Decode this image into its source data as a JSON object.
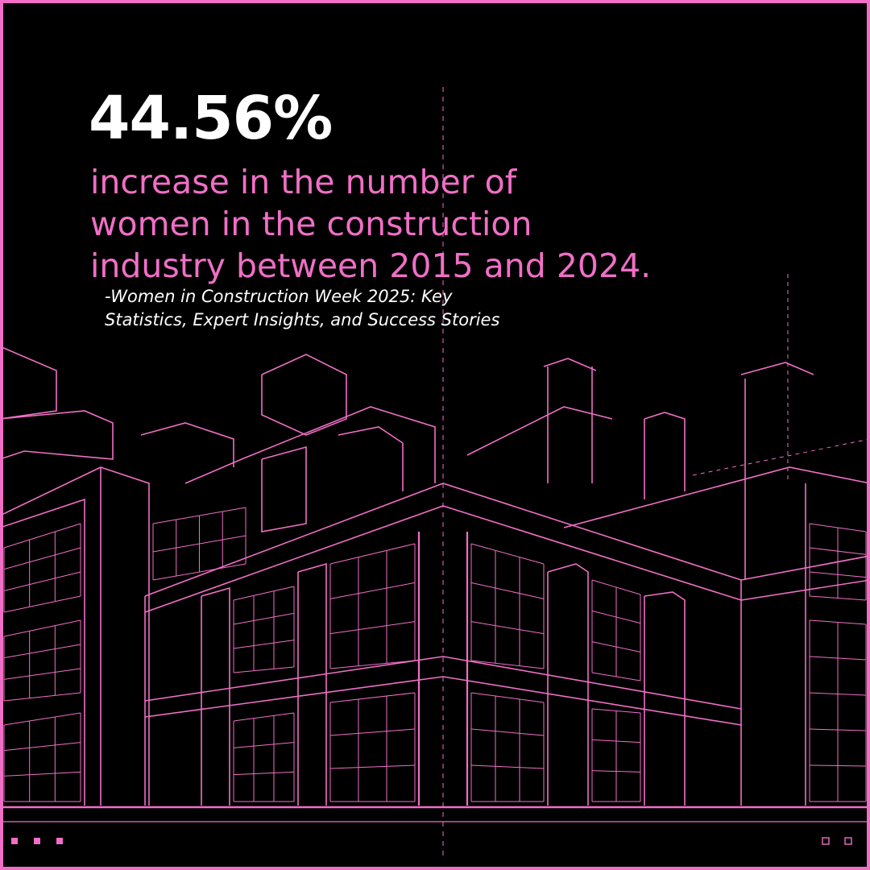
{
  "headline": "44.56%",
  "body": {
    "lines": [
      "increase in the number of",
      "women in the construction",
      "industry between 2015 and 2024."
    ]
  },
  "source": {
    "lines": [
      "-Women in Construction Week 2025: Key",
      "Statistics, Expert Insights, and Success Stories"
    ]
  }
}
